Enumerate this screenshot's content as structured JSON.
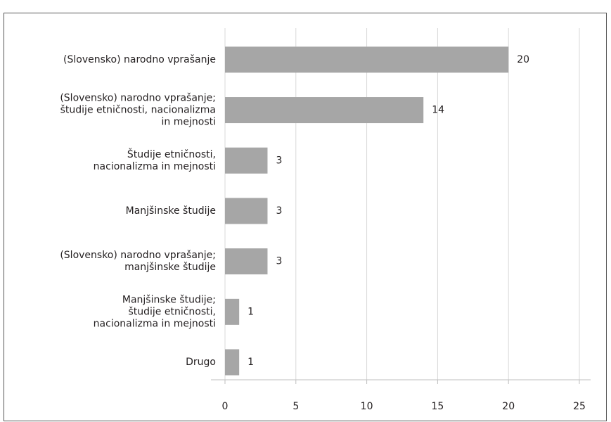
{
  "chart_data": {
    "type": "hbar",
    "categories": [
      "(Slovensko) narodno vprašanje",
      "(Slovensko) narodno vprašanje;\nštudije etničnosti, nacionalizma\nin mejnosti",
      "Študije etničnosti,\nnacionalizma in mejnosti",
      "Manjšinske študije",
      "(Slovensko) narodno vprašanje;\nmanjšinske študije",
      "Manjšinske študije;\nštudije etničnosti,\nnacionalizma in mejnosti",
      "Drugo"
    ],
    "values": [
      20,
      14,
      3,
      3,
      3,
      1,
      1
    ],
    "color": "#a6a6a6",
    "xlim": [
      0,
      25
    ],
    "xticks": [
      0,
      5,
      10,
      15,
      20,
      25
    ],
    "grid": true
  }
}
